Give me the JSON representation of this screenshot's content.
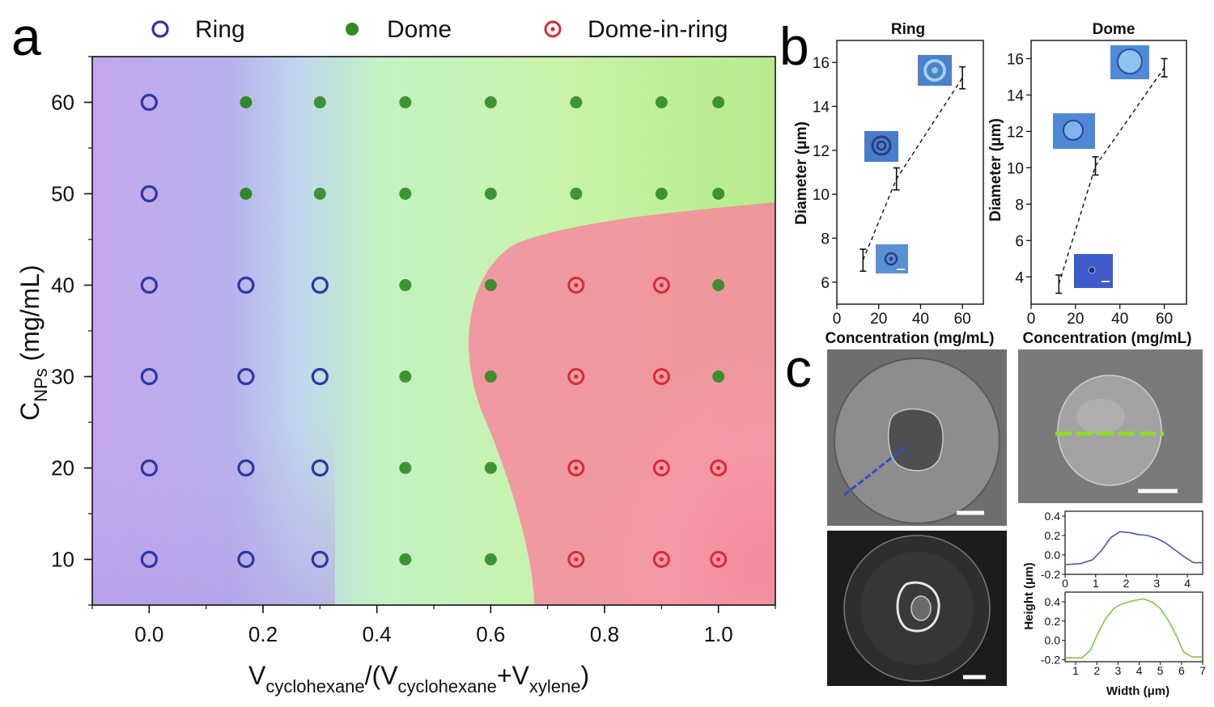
{
  "panels": {
    "a": "a",
    "b": "b",
    "c": "c"
  },
  "legend": [
    {
      "label": "Ring",
      "marker": "open-circle",
      "color": "#2d35a8"
    },
    {
      "label": "Dome",
      "marker": "filled-circle",
      "color": "#2f8a23"
    },
    {
      "label": "Dome-in-ring",
      "marker": "target",
      "color": "#d82a3a"
    }
  ],
  "chart_data": [
    {
      "type": "scatter",
      "panel": "a",
      "title": "",
      "xlabel": "V_cyclohexane/(V_cyclohexane+V_xylene)",
      "xlabel_parts": {
        "v1": "V",
        "s1": "cyclohexane",
        "mid": "/(V",
        "s2": "cyclohexane",
        "plus": "+V",
        "s3": "xylene",
        "end": ")"
      },
      "ylabel": "C_NPs (mg/mL)",
      "ylabel_parts": {
        "c": "C",
        "sub": "NPs",
        "rest": " (mg/mL)"
      },
      "xlim": [
        -0.1,
        1.1
      ],
      "ylim": [
        5,
        65
      ],
      "xticks": [
        "0.0",
        "0.2",
        "0.4",
        "0.6",
        "0.8",
        "1.0"
      ],
      "xtick_values": [
        0.0,
        0.2,
        0.4,
        0.6,
        0.8,
        1.0
      ],
      "yticks": [
        "10",
        "20",
        "30",
        "40",
        "50",
        "60"
      ],
      "ytick_values": [
        10,
        20,
        30,
        40,
        50,
        60
      ],
      "background": "gradient purple (ring) / green (dome) / pink (dome-in-ring)",
      "points": [
        {
          "x": 0.0,
          "y": 60,
          "type": "Ring"
        },
        {
          "x": 0.0,
          "y": 50,
          "type": "Ring"
        },
        {
          "x": 0.0,
          "y": 40,
          "type": "Ring"
        },
        {
          "x": 0.0,
          "y": 30,
          "type": "Ring"
        },
        {
          "x": 0.0,
          "y": 20,
          "type": "Ring"
        },
        {
          "x": 0.0,
          "y": 10,
          "type": "Ring"
        },
        {
          "x": 0.17,
          "y": 60,
          "type": "Dome"
        },
        {
          "x": 0.17,
          "y": 50,
          "type": "Dome"
        },
        {
          "x": 0.17,
          "y": 40,
          "type": "Ring"
        },
        {
          "x": 0.17,
          "y": 30,
          "type": "Ring"
        },
        {
          "x": 0.17,
          "y": 20,
          "type": "Ring"
        },
        {
          "x": 0.17,
          "y": 10,
          "type": "Ring"
        },
        {
          "x": 0.3,
          "y": 60,
          "type": "Dome"
        },
        {
          "x": 0.3,
          "y": 50,
          "type": "Dome"
        },
        {
          "x": 0.3,
          "y": 40,
          "type": "Ring"
        },
        {
          "x": 0.3,
          "y": 30,
          "type": "Ring"
        },
        {
          "x": 0.3,
          "y": 20,
          "type": "Ring"
        },
        {
          "x": 0.3,
          "y": 10,
          "type": "Ring"
        },
        {
          "x": 0.45,
          "y": 60,
          "type": "Dome"
        },
        {
          "x": 0.45,
          "y": 50,
          "type": "Dome"
        },
        {
          "x": 0.45,
          "y": 40,
          "type": "Dome"
        },
        {
          "x": 0.45,
          "y": 30,
          "type": "Dome"
        },
        {
          "x": 0.45,
          "y": 20,
          "type": "Dome"
        },
        {
          "x": 0.45,
          "y": 10,
          "type": "Dome"
        },
        {
          "x": 0.6,
          "y": 60,
          "type": "Dome"
        },
        {
          "x": 0.6,
          "y": 50,
          "type": "Dome"
        },
        {
          "x": 0.6,
          "y": 40,
          "type": "Dome"
        },
        {
          "x": 0.6,
          "y": 30,
          "type": "Dome"
        },
        {
          "x": 0.6,
          "y": 20,
          "type": "Dome"
        },
        {
          "x": 0.6,
          "y": 10,
          "type": "Dome"
        },
        {
          "x": 0.75,
          "y": 60,
          "type": "Dome"
        },
        {
          "x": 0.75,
          "y": 50,
          "type": "Dome"
        },
        {
          "x": 0.75,
          "y": 40,
          "type": "Dome-in-ring"
        },
        {
          "x": 0.75,
          "y": 30,
          "type": "Dome-in-ring"
        },
        {
          "x": 0.75,
          "y": 20,
          "type": "Dome-in-ring"
        },
        {
          "x": 0.75,
          "y": 10,
          "type": "Dome-in-ring"
        },
        {
          "x": 0.9,
          "y": 60,
          "type": "Dome"
        },
        {
          "x": 0.9,
          "y": 50,
          "type": "Dome"
        },
        {
          "x": 0.9,
          "y": 40,
          "type": "Dome-in-ring"
        },
        {
          "x": 0.9,
          "y": 30,
          "type": "Dome-in-ring"
        },
        {
          "x": 0.9,
          "y": 20,
          "type": "Dome-in-ring"
        },
        {
          "x": 0.9,
          "y": 10,
          "type": "Dome-in-ring"
        },
        {
          "x": 1.0,
          "y": 60,
          "type": "Dome"
        },
        {
          "x": 1.0,
          "y": 50,
          "type": "Dome"
        },
        {
          "x": 1.0,
          "y": 40,
          "type": "Dome"
        },
        {
          "x": 1.0,
          "y": 30,
          "type": "Dome"
        },
        {
          "x": 1.0,
          "y": 20,
          "type": "Dome-in-ring"
        },
        {
          "x": 1.0,
          "y": 10,
          "type": "Dome-in-ring"
        }
      ]
    },
    {
      "type": "scatter",
      "panel": "b-ring",
      "title": "Ring",
      "xlabel": "Concentration (mg/mL)",
      "ylabel": "Diameter (μm)",
      "xlim": [
        0,
        70
      ],
      "ylim": [
        5,
        17
      ],
      "xticks": [
        "0",
        "20",
        "40",
        "60"
      ],
      "xtick_values": [
        0,
        20,
        40,
        60
      ],
      "yticks": [
        "6",
        "8",
        "10",
        "12",
        "14",
        "16"
      ],
      "ytick_values": [
        6,
        8,
        10,
        12,
        14,
        16
      ],
      "points": [
        {
          "x": 12.5,
          "y": 7.0,
          "err": 0.5
        },
        {
          "x": 28.5,
          "y": 10.7,
          "err": 0.5
        },
        {
          "x": 60,
          "y": 15.3,
          "err": 0.5
        }
      ],
      "trend": "dashed line"
    },
    {
      "type": "scatter",
      "panel": "b-dome",
      "title": "Dome",
      "xlabel": "Concentration (mg/mL)",
      "ylabel": "Diameter (μm)",
      "xlim": [
        0,
        70
      ],
      "ylim": [
        2.5,
        17
      ],
      "xticks": [
        "0",
        "20",
        "40",
        "60"
      ],
      "xtick_values": [
        0,
        20,
        40,
        60
      ],
      "yticks": [
        "4",
        "6",
        "8",
        "10",
        "12",
        "14",
        "16"
      ],
      "ytick_values": [
        4,
        6,
        8,
        10,
        12,
        14,
        16
      ],
      "points": [
        {
          "x": 12.5,
          "y": 3.6,
          "err": 0.5
        },
        {
          "x": 29,
          "y": 10.1,
          "err": 0.5
        },
        {
          "x": 60,
          "y": 15.5,
          "err": 0.5
        }
      ],
      "trend": "dashed line"
    },
    {
      "type": "line",
      "panel": "c-profile-ring",
      "ylabel": "Height (μm)",
      "xlim": [
        0,
        4.5
      ],
      "ylim": [
        -0.2,
        0.45
      ],
      "xticks": [
        "0",
        "1",
        "2",
        "3",
        "4"
      ],
      "xtick_values": [
        0,
        1,
        2,
        3,
        4
      ],
      "yticks": [
        "0.4",
        "0.2",
        "0.0",
        "-0.2"
      ],
      "ytick_values": [
        0.4,
        0.2,
        0.0,
        -0.2
      ],
      "color": "#4a58b0",
      "x": [
        0,
        0.5,
        0.9,
        1.2,
        1.5,
        1.8,
        2.1,
        2.4,
        2.7,
        3.0,
        3.3,
        3.6,
        3.9,
        4.2,
        4.5
      ],
      "y": [
        -0.1,
        -0.09,
        -0.05,
        0.05,
        0.18,
        0.24,
        0.23,
        0.21,
        0.2,
        0.17,
        0.12,
        0.05,
        -0.02,
        -0.08,
        -0.08
      ]
    },
    {
      "type": "line",
      "panel": "c-profile-dome",
      "ylabel": "Height (μm)",
      "xlabel": "Width (μm)",
      "xlim": [
        0.5,
        7
      ],
      "ylim": [
        -0.22,
        0.5
      ],
      "xticks": [
        "1",
        "2",
        "3",
        "4",
        "5",
        "6",
        "7"
      ],
      "xtick_values": [
        1,
        2,
        3,
        4,
        5,
        6,
        7
      ],
      "yticks": [
        "0.4",
        "0.2",
        "0.0",
        "-0.2"
      ],
      "ytick_values": [
        0.4,
        0.2,
        0.0,
        -0.2
      ],
      "color": "#7cc94a",
      "x": [
        0.5,
        1.3,
        1.7,
        2.0,
        2.4,
        2.8,
        3.2,
        3.7,
        4.2,
        4.6,
        5.0,
        5.4,
        5.8,
        6.1,
        6.5,
        7.0
      ],
      "y": [
        -0.18,
        -0.18,
        -0.1,
        0.05,
        0.22,
        0.33,
        0.38,
        0.41,
        0.43,
        0.4,
        0.33,
        0.2,
        0.03,
        -0.12,
        -0.17,
        -0.17
      ]
    }
  ]
}
